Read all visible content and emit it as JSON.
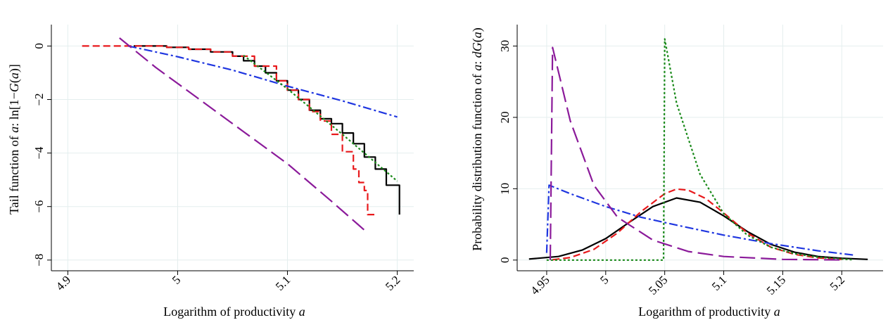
{
  "chart_data": [
    {
      "type": "line",
      "title": "",
      "xlabel": "Logarithm of productivity a",
      "ylabel": "Tail function of a: ln[1−G(a)]",
      "xlim": [
        4.885,
        5.215
      ],
      "ylim": [
        -8.4,
        0.8
      ],
      "xticks": [
        "4.9",
        "5",
        "5.1",
        "5.2"
      ],
      "xtick_values": [
        4.9,
        5.0,
        5.1,
        5.2
      ],
      "yticks": [
        "0",
        "−2",
        "−4",
        "−6",
        "−8"
      ],
      "ytick_values": [
        0,
        -2,
        -4,
        -6,
        -8
      ],
      "grid": true,
      "legend": "none",
      "series": [
        {
          "color": "#000000",
          "dash": "solid",
          "step": true,
          "points": [
            [
              4.96,
              0.0
            ],
            [
              4.99,
              -0.05
            ],
            [
              5.01,
              -0.12
            ],
            [
              5.03,
              -0.22
            ],
            [
              5.05,
              -0.38
            ],
            [
              5.06,
              -0.55
            ],
            [
              5.07,
              -0.75
            ],
            [
              5.08,
              -1.0
            ],
            [
              5.09,
              -1.3
            ],
            [
              5.1,
              -1.65
            ],
            [
              5.11,
              -2.0
            ],
            [
              5.12,
              -2.4
            ],
            [
              5.13,
              -2.72
            ],
            [
              5.14,
              -2.9
            ],
            [
              5.15,
              -3.25
            ],
            [
              5.16,
              -3.65
            ],
            [
              5.17,
              -4.15
            ],
            [
              5.18,
              -4.6
            ],
            [
              5.19,
              -5.2
            ],
            [
              5.202,
              -5.2
            ],
            [
              5.202,
              -6.3
            ]
          ]
        },
        {
          "color": "#e8191c",
          "dash": "dashed",
          "step": true,
          "points": [
            [
              4.913,
              0.0
            ],
            [
              4.96,
              0.0
            ],
            [
              4.99,
              -0.05
            ],
            [
              5.01,
              -0.12
            ],
            [
              5.03,
              -0.22
            ],
            [
              5.05,
              -0.38
            ],
            [
              5.07,
              -0.75
            ],
            [
              5.09,
              -1.3
            ],
            [
              5.1,
              -1.65
            ],
            [
              5.11,
              -2.0
            ],
            [
              5.12,
              -2.45
            ],
            [
              5.13,
              -2.8
            ],
            [
              5.14,
              -3.3
            ],
            [
              5.15,
              -3.95
            ],
            [
              5.16,
              -4.6
            ],
            [
              5.165,
              -5.1
            ],
            [
              5.17,
              -5.4
            ],
            [
              5.173,
              -5.4
            ],
            [
              5.173,
              -6.3
            ],
            [
              5.182,
              -6.3
            ]
          ]
        },
        {
          "color": "#1f36e0",
          "dash": "dashdot",
          "step": false,
          "points": [
            [
              4.955,
              0.0
            ],
            [
              5.0,
              -0.4
            ],
            [
              5.05,
              -0.9
            ],
            [
              5.1,
              -1.5
            ],
            [
              5.15,
              -2.05
            ],
            [
              5.2,
              -2.65
            ]
          ]
        },
        {
          "color": "#1a8a1a",
          "dash": "dotted",
          "step": false,
          "points": [
            [
              5.06,
              -0.35
            ],
            [
              5.1,
              -1.6
            ],
            [
              5.15,
              -3.3
            ],
            [
              5.2,
              -5.05
            ]
          ]
        },
        {
          "color": "#8b1a9a",
          "dash": "longdash",
          "step": false,
          "points": [
            [
              4.947,
              0.3
            ],
            [
              4.98,
              -0.8
            ],
            [
              5.02,
              -2.0
            ],
            [
              5.06,
              -3.2
            ],
            [
              5.1,
              -4.4
            ],
            [
              5.14,
              -5.8
            ],
            [
              5.172,
              -6.95
            ]
          ]
        }
      ]
    },
    {
      "type": "line",
      "title": "",
      "xlabel": "Logarithm of productivity a",
      "ylabel": "Probability distribution function of a: dG(a)",
      "xlim": [
        4.925,
        5.235
      ],
      "ylim": [
        -1.5,
        33
      ],
      "xticks": [
        "4.95",
        "5",
        "5.05",
        "5.1",
        "5.15",
        "5.2"
      ],
      "xtick_values": [
        4.95,
        5.0,
        5.05,
        5.1,
        5.15,
        5.2
      ],
      "yticks": [
        "0",
        "10",
        "20",
        "30"
      ],
      "ytick_values": [
        0,
        10,
        20,
        30
      ],
      "grid": true,
      "legend": "none",
      "series": [
        {
          "color": "#000000",
          "dash": "solid",
          "points": [
            [
              4.935,
              0.15
            ],
            [
              4.96,
              0.5
            ],
            [
              4.98,
              1.4
            ],
            [
              5.0,
              3.0
            ],
            [
              5.02,
              5.3
            ],
            [
              5.04,
              7.5
            ],
            [
              5.06,
              8.7
            ],
            [
              5.08,
              8.1
            ],
            [
              5.1,
              6.2
            ],
            [
              5.12,
              4.0
            ],
            [
              5.14,
              2.2
            ],
            [
              5.16,
              1.1
            ],
            [
              5.18,
              0.5
            ],
            [
              5.2,
              0.25
            ],
            [
              5.222,
              0.1
            ]
          ]
        },
        {
          "color": "#e8191c",
          "dash": "dashed",
          "points": [
            [
              4.955,
              0.05
            ],
            [
              4.97,
              0.35
            ],
            [
              4.99,
              1.5
            ],
            [
              5.01,
              3.8
            ],
            [
              5.03,
              6.8
            ],
            [
              5.05,
              9.3
            ],
            [
              5.06,
              9.95
            ],
            [
              5.07,
              9.8
            ],
            [
              5.085,
              8.6
            ],
            [
              5.1,
              6.6
            ],
            [
              5.12,
              3.8
            ],
            [
              5.14,
              1.8
            ],
            [
              5.16,
              0.8
            ],
            [
              5.18,
              0.3
            ],
            [
              5.2,
              0.1
            ]
          ]
        },
        {
          "color": "#1f36e0",
          "dash": "dashdot",
          "points": [
            [
              4.95,
              1.0
            ],
            [
              4.952,
              10.5
            ],
            [
              4.97,
              9.3
            ],
            [
              5.0,
              7.5
            ],
            [
              5.03,
              6.0
            ],
            [
              5.06,
              4.9
            ],
            [
              5.1,
              3.5
            ],
            [
              5.14,
              2.3
            ],
            [
              5.18,
              1.3
            ],
            [
              5.21,
              0.7
            ]
          ]
        },
        {
          "color": "#1a8a1a",
          "dash": "dotted",
          "points": [
            [
              4.95,
              0.0
            ],
            [
              5.049,
              0.0
            ],
            [
              5.05,
              31.0
            ],
            [
              5.06,
              22.0
            ],
            [
              5.08,
              12.0
            ],
            [
              5.1,
              6.5
            ],
            [
              5.12,
              3.5
            ],
            [
              5.14,
              1.8
            ],
            [
              5.16,
              0.9
            ],
            [
              5.18,
              0.4
            ],
            [
              5.2,
              0.15
            ],
            [
              5.21,
              0.05
            ]
          ]
        },
        {
          "color": "#8b1a9a",
          "dash": "longdash",
          "points": [
            [
              4.953,
              0.0
            ],
            [
              4.955,
              29.8
            ],
            [
              4.97,
              19.5
            ],
            [
              4.99,
              10.5
            ],
            [
              5.01,
              6.0
            ],
            [
              5.04,
              2.8
            ],
            [
              5.07,
              1.2
            ],
            [
              5.1,
              0.5
            ],
            [
              5.15,
              0.1
            ],
            [
              5.2,
              0.02
            ]
          ]
        }
      ]
    }
  ]
}
